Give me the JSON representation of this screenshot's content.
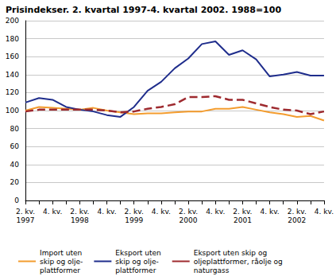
{
  "chart_data": {
    "type": "line",
    "title": "Prisindekser. 2. kvartal 1997-4. kvartal 2002. 1988=100",
    "categories": [
      "2. kv.\n1997",
      null,
      "4. kv.",
      null,
      "2. kv.\n1998",
      null,
      "4. kv.",
      null,
      "2. kv.\n1999",
      null,
      "4. kv.",
      null,
      "2. kv.\n2000",
      null,
      "4. kv.",
      null,
      "2. kv.\n2001",
      null,
      "4. kv.",
      null,
      "2. kv.\n2002",
      null,
      "4. kv."
    ],
    "series": [
      {
        "name": "Import uten\nskip og olje-\nplattformer",
        "color": "#f39c2e",
        "line_style": "solid",
        "values": [
          100,
          104,
          103,
          102,
          101,
          103,
          100,
          98,
          96,
          97,
          97,
          98,
          99,
          99,
          102,
          102,
          104,
          101,
          98,
          96,
          93,
          94,
          89
        ]
      },
      {
        "name": "Eksport uten\nskip og olje-\nplattformer",
        "color": "#1f2d8c",
        "line_style": "solid",
        "values": [
          109,
          114,
          112,
          104,
          101,
          99,
          95,
          93,
          104,
          122,
          132,
          147,
          158,
          174,
          177,
          162,
          167,
          157,
          138,
          140,
          143,
          139,
          139
        ]
      },
      {
        "name": "Eksport uten skip og\noljeplattformer, råolje og\nnaturgass",
        "color": "#9e2a2f",
        "line_style": "dashed",
        "values": [
          99,
          101,
          101,
          101,
          101,
          101,
          100,
          98,
          99,
          102,
          104,
          107,
          115,
          115,
          116,
          112,
          112,
          108,
          104,
          101,
          100,
          96,
          99
        ]
      }
    ],
    "ylim": [
      0,
      200
    ],
    "yticks": [
      0,
      20,
      40,
      60,
      80,
      100,
      120,
      140,
      160,
      180,
      200
    ],
    "grid": true,
    "legend": "bottom",
    "marker": "none"
  }
}
